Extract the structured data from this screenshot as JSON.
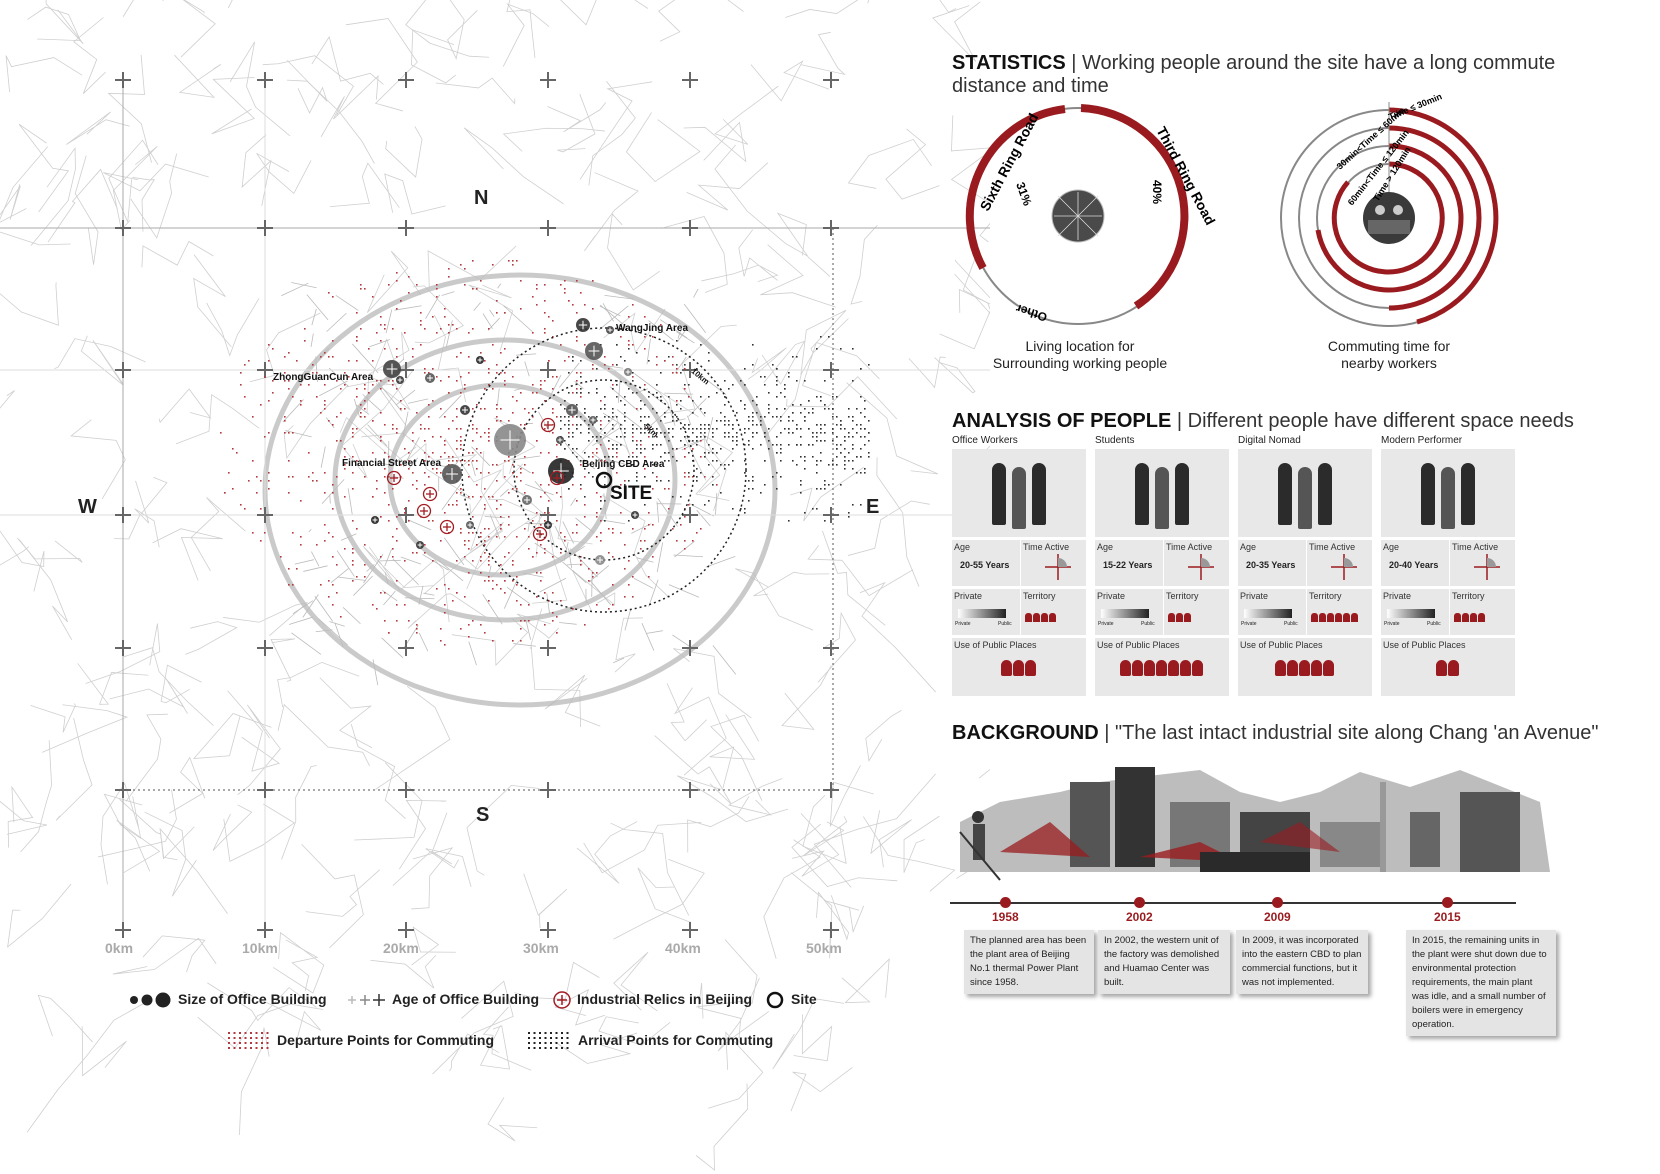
{
  "map": {
    "directions": {
      "n": "N",
      "s": "S",
      "w": "W",
      "e": "E"
    },
    "scale": [
      "0km",
      "10km",
      "20km",
      "30km",
      "40km",
      "50km"
    ],
    "place_labels": {
      "zhongguancun": "ZhongGuanCun Area",
      "wangjing": "WangJing Area",
      "financial": "Financial Street Area",
      "cbd": "Beijing CBD Area",
      "site": "SITE",
      "ring10": "10km",
      "ring5": "5km"
    },
    "legend": {
      "size": "Size of Office Building",
      "age": "Age of Office Building",
      "relics": "Industrial Relics in Beijing",
      "site": "Site",
      "departure": "Departure Points for Commuting",
      "arrival": "Arrival Points for Commuting"
    },
    "colors": {
      "red": "#a31c22",
      "dark": "#222222",
      "grey": "#888888"
    }
  },
  "statistics": {
    "title_bold": "STATISTICS",
    "title_rest": " | Working people around the site have a long commute distance and time",
    "living": {
      "labels": {
        "sixth": "Sixth Ring Road",
        "third": "Third Ring Road",
        "other": "Other"
      },
      "percents": {
        "sixth": "31%",
        "third": "40%"
      },
      "caption_line1": "Living location for",
      "caption_line2": "Surrounding working people"
    },
    "commute": {
      "labels": [
        "Time ≤ 30min",
        "30min<Time ≤ 60min",
        "60min<Time ≤ 120min",
        "Time > 120min"
      ],
      "caption_line1": "Commuting time for",
      "caption_line2": "nearby workers"
    }
  },
  "analysis": {
    "title_bold": "ANALYSIS OF PEOPLE",
    "title_rest": " | Different people have different space needs",
    "labels": {
      "age": "Age",
      "time": "Time Active",
      "private": "Private",
      "territory": "Territory",
      "use": "Use of Public Places",
      "priv_small": "Private",
      "pub_small": "Public"
    },
    "groups": [
      {
        "name": "Office Workers",
        "age": "20-55 Years",
        "territory": 4,
        "use": 3
      },
      {
        "name": "Students",
        "age": "15-22 Years",
        "territory": 3,
        "use": 7
      },
      {
        "name": "Digital Nomad",
        "age": "20-35 Years",
        "territory": 6,
        "use": 5
      },
      {
        "name": "Modern Performer",
        "age": "20-40 Years",
        "territory": 4,
        "use": 2
      }
    ]
  },
  "background": {
    "title_bold": "BACKGROUND",
    "title_rest": " | \"The last intact industrial site along Chang 'an Avenue\"",
    "timeline": [
      {
        "year": "1958",
        "text": "The planned area has been the plant area of Beijing No.1 thermal Power Plant since 1958."
      },
      {
        "year": "2002",
        "text": "In 2002, the western unit of the factory was demolished and Huamao Center was built."
      },
      {
        "year": "2009",
        "text": "In 2009, it was incorporated into the eastern CBD to plan commercial functions, but it was not implemented."
      },
      {
        "year": "2015",
        "text": "In 2015, the remaining units in the plant were shut down due to environmental protection requirements, the main plant was idle, and a small number of boilers were in emergency operation."
      }
    ]
  }
}
